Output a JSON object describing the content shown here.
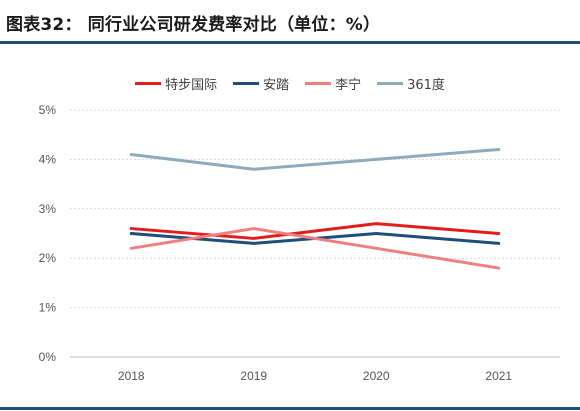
{
  "header": {
    "title": "图表32：  同行业公司研发费率对比（单位：%）"
  },
  "chart_data": {
    "type": "line",
    "title": "",
    "xlabel": "",
    "ylabel": "",
    "categories": [
      "2018",
      "2019",
      "2020",
      "2021"
    ],
    "ylim": [
      0,
      5
    ],
    "yticks": [
      "0%",
      "1%",
      "2%",
      "3%",
      "4%",
      "5%"
    ],
    "grid": "horizontal-dashed",
    "legend_position": "top-center",
    "series": [
      {
        "name": "特步国际",
        "color": "#e31c1c",
        "values": [
          2.6,
          2.4,
          2.7,
          2.5
        ]
      },
      {
        "name": "安踏",
        "color": "#1f4e79",
        "values": [
          2.5,
          2.3,
          2.5,
          2.3
        ]
      },
      {
        "name": "李宁",
        "color": "#f08080",
        "values": [
          2.2,
          2.6,
          2.2,
          1.8
        ]
      },
      {
        "name": "361度",
        "color": "#8eaabb",
        "values": [
          4.1,
          3.8,
          4.0,
          4.2
        ]
      }
    ]
  }
}
